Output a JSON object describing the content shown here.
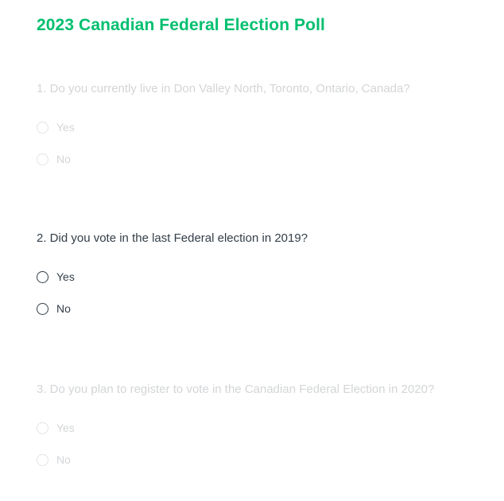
{
  "survey": {
    "title": "2023 Canadian Federal Election Poll",
    "accent_color": "#00bf6f"
  },
  "questions": [
    {
      "text": "1. Do you currently live in Don Valley North, Toronto, Ontario, Canada?",
      "state": "inactive",
      "options": [
        {
          "label": "Yes",
          "selected": false
        },
        {
          "label": "No",
          "selected": false
        }
      ]
    },
    {
      "text": "2. Did you vote in the last Federal election in 2019?",
      "state": "active",
      "options": [
        {
          "label": "Yes",
          "selected": false
        },
        {
          "label": "No",
          "selected": false
        }
      ]
    },
    {
      "text": "3. Do you plan to register to vote in the Canadian Federal Election in 2020?",
      "state": "inactive",
      "options": [
        {
          "label": "Yes",
          "selected": false
        },
        {
          "label": "No",
          "selected": false
        }
      ]
    }
  ]
}
